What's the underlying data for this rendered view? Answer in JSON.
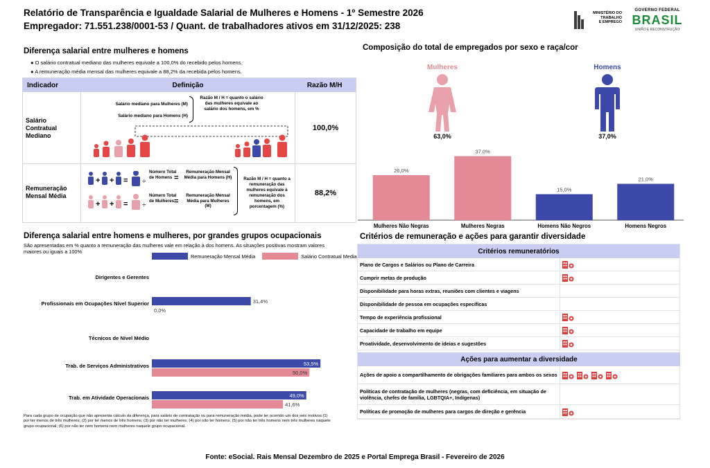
{
  "header": {
    "title": "Relatório de Transparência e Igualdade Salarial de Mulheres e Homens - 1º Semestre 2026",
    "subtitle": "Empregador: 71.551.238/0001-53 / Quant. de trabalhadores ativos em 31/12/2025: 238",
    "ministry_lines": [
      "MINISTÉRIO DO",
      "TRABALHO",
      "E EMPREGO"
    ],
    "gov_line1": "GOVERNO FEDERAL",
    "gov_brand": "BRASIL",
    "gov_slogan": "UNIÃO E RECONSTRUÇÃO"
  },
  "salary_gap": {
    "heading": "Diferença salarial entre mulheres e homens",
    "bullet1": "O salário contratual mediano das mulheres equivale a 100,0% do recebido pelos homens.",
    "bullet2": "A remuneração média mensal das mulheres equivale a 88,2% da recebida pelos homens.",
    "table_headers": [
      "Indicador",
      "Definição",
      "Razão M/H"
    ],
    "row1": {
      "indicator": "Salário Contratual Mediano",
      "label_w": "Salário mediano para Mulheres (M)",
      "label_m": "Salário mediano para Homens (H)",
      "explain": "Razão M / H = quanto o salário das mulheres equivale ao salário dos homens, em %",
      "ratio": "100,0%"
    },
    "row2": {
      "indicator": "Remuneração Mensal Média",
      "num_m": "Número Total de Homens",
      "res_m": "Remuneração Mensal Média para Homens (H)",
      "num_w": "Número Total de Mulheres",
      "res_w": "Remuneração Mensal Média para Mulheres (M)",
      "explain": "Razão M / H = quanto a remuneração das mulheres equivale à remuneração dos homens, em porcentagem (%)",
      "ratio": "88,2%"
    }
  },
  "composition": {
    "heading": "Composição do total de empregados por sexo e raça/cor",
    "women_label": "Mulheres",
    "men_label": "Homens",
    "women_pct": "63,0%",
    "men_pct": "37,0%",
    "colors": {
      "women": "#e38a96",
      "men": "#3c49a8"
    }
  },
  "chart_data": [
    {
      "type": "bar",
      "title": "Composição do total de empregados por sexo e raça/cor",
      "categories": [
        "Mulheres Não Negras",
        "Mulheres Negras",
        "Homens Não Negros",
        "Homens Negros"
      ],
      "values": [
        26.0,
        37.0,
        15.0,
        21.0
      ],
      "labels": [
        "26,0%",
        "37,0%",
        "15,0%",
        "21,0%"
      ],
      "ylim": [
        0,
        40
      ]
    },
    {
      "type": "bar",
      "orientation": "horizontal",
      "title": "Diferença salarial entre homens e mulheres, por grandes grupos ocupacionais",
      "categories": [
        "Dirigentes e Gerentes",
        "Profissionais em Ocupações Nível Superior",
        "Técnicos de Nível Médio",
        "Trab. de Serviços Administrativos",
        "Trab. em Atividade Operacionais"
      ],
      "series": [
        {
          "name": "Remuneração Mensal Média",
          "values": [
            null,
            31.4,
            null,
            53.5,
            49.0
          ],
          "labels": [
            "",
            "31,4%",
            "",
            "53,5%",
            "49,0%"
          ]
        },
        {
          "name": "Salário Contratual Mediano",
          "values": [
            null,
            0.0,
            null,
            50.0,
            41.6
          ],
          "labels": [
            "",
            "0,0%",
            "",
            "50,0%",
            "41,6%"
          ]
        }
      ],
      "xlim": [
        0,
        55
      ]
    }
  ],
  "groups": {
    "heading": "Diferença salarial entre homens e mulheres, por grandes grupos ocupacionais",
    "subtitle": "São apresentadas em % quanto a remuneração das mulheres vale em relação à dos homens. As situações positivas mostram valores maiores ou iguais a 100%",
    "legend_rem": "Remuneração Mensal Média",
    "legend_sal": "Salário Contratual Mediano",
    "footnote": "Para cada grupo de ocupação que não apresenta cálculo da diferença, para salário de contratação ou para remuneração média, pode ter ocorrido um dos seis motivos:(1) por ter menos de três mulheres; (2) por ter menos de três homens; (3) por não ter mulheres; (4) por não ter homens; (5) por não ter três homens nem três mulheres naquele grupo ocupacional; (6) por não ter nem homens nem mulheres naquele grupo ocupacional."
  },
  "criteria": {
    "heading": "Critérios de remuneração e ações para garantir diversidade",
    "crit_title": "Critérios remuneratórios",
    "items": [
      {
        "label": "Plano de Cargos e Salários ou Plano de Carreira",
        "icons": 1
      },
      {
        "label": "Cumprir metas de produção",
        "icons": 1
      },
      {
        "label": "Disponibilidade para horas extras, reuniões com clientes e viagens",
        "icons": 0
      },
      {
        "label": "Disponibilidade de pessoa em ocupações específicas",
        "icons": 0
      },
      {
        "label": "Tempo de experiência profissional",
        "icons": 1
      },
      {
        "label": "Capacidade de trabalho em equipe",
        "icons": 1
      },
      {
        "label": "Proatividade, desenvolvimento de ideias e sugestões",
        "icons": 1
      }
    ],
    "actions_title": "Ações para aumentar a diversidade",
    "actions": [
      {
        "label": "Ações de apoio a compartilhamento de obrigações familiares para ambos os sexos",
        "icons": 4
      },
      {
        "label": "Políticas de contratação de mulheres (negras, com deficiência, em situação de violência, chefes de família, LGBTQIA+, Indígenas)",
        "icons": 0
      },
      {
        "label": "Políticas de promoção de mulheres para cargos de direção e gerência",
        "icons": 1
      }
    ]
  },
  "footer": {
    "source": "Fonte: eSocial. Rais Mensal Dezembro de 2025 e Portal Emprega Brasil - Fevereiro de 2026"
  }
}
